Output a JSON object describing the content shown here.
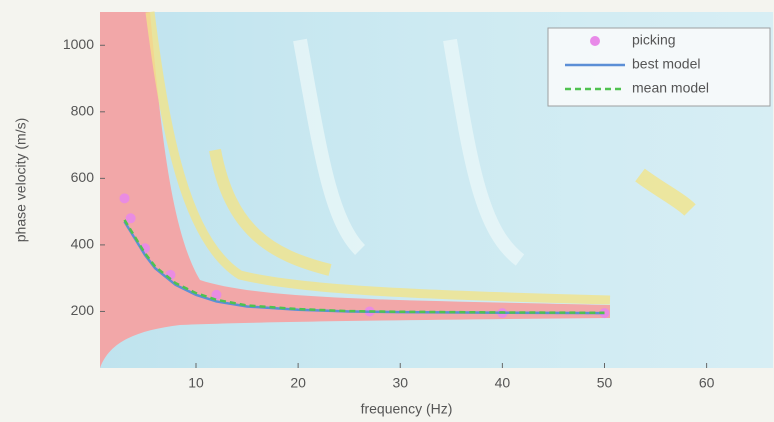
{
  "chart_data": {
    "type": "line",
    "xlabel": "frequency (Hz)",
    "ylabel": "phase velocity (m/s)",
    "xlim": [
      0.6,
      66.5
    ],
    "ylim": [
      30,
      1100
    ],
    "xticks": [
      10,
      20,
      30,
      40,
      50,
      60
    ],
    "yticks": [
      200,
      400,
      600,
      800,
      1000
    ],
    "legend": "upper right",
    "series": [
      {
        "name": "picking",
        "color": "#e88ae8",
        "marker": true,
        "x": [
          3,
          3.6,
          5,
          7.5,
          12,
          27,
          40,
          50
        ],
        "values": [
          540,
          480,
          390,
          310,
          250,
          200,
          195,
          195
        ]
      },
      {
        "name": "best model",
        "color": "#5b8fd6",
        "x": [
          3,
          4,
          5,
          6,
          8,
          10,
          12,
          15,
          20,
          25,
          30,
          40,
          50
        ],
        "values": [
          470,
          420,
          370,
          330,
          280,
          250,
          230,
          215,
          205,
          200,
          198,
          196,
          195
        ]
      },
      {
        "name": "mean model",
        "color": "#4fc24f",
        "dashed": true,
        "x": [
          3,
          4,
          5,
          6,
          8,
          10,
          12,
          15,
          20,
          25,
          30,
          40,
          50
        ],
        "values": [
          475,
          425,
          375,
          335,
          285,
          255,
          235,
          218,
          207,
          201,
          199,
          197,
          196
        ]
      }
    ]
  }
}
